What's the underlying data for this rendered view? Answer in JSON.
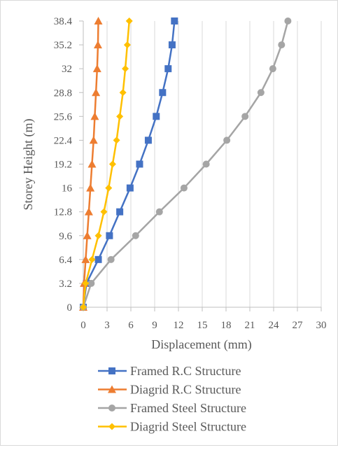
{
  "chart_data": {
    "type": "line",
    "orientation": "horizontal-x-value",
    "xlabel": "Displacement (mm)",
    "ylabel": "Storey Height (m)",
    "xlim": [
      0,
      30
    ],
    "xticks": [
      "0",
      "3",
      "6",
      "9",
      "12",
      "15",
      "18",
      "21",
      "24",
      "27",
      "30"
    ],
    "yticks": [
      "0",
      "3.2",
      "6.4",
      "9.6",
      "12.8",
      "16",
      "19.2",
      "22.4",
      "25.6",
      "28.8",
      "32",
      "35.2",
      "38.4"
    ],
    "y": [
      0,
      3.2,
      6.4,
      9.6,
      12.8,
      16,
      19.2,
      22.4,
      25.6,
      28.8,
      32,
      35.2,
      38.4
    ],
    "grid": "vertical",
    "legend_position": "bottom",
    "series": [
      {
        "name": "Framed R.C Structure",
        "color": "#4472c4",
        "marker": "square",
        "x": [
          0,
          0.4,
          1.9,
          3.3,
          4.6,
          5.9,
          7.1,
          8.2,
          9.2,
          10.0,
          10.7,
          11.2,
          11.5
        ]
      },
      {
        "name": "Diagrid R.C Structure",
        "color": "#ed7d31",
        "marker": "triangle",
        "x": [
          0,
          0.1,
          0.3,
          0.5,
          0.7,
          0.9,
          1.1,
          1.3,
          1.45,
          1.6,
          1.75,
          1.85,
          1.9
        ]
      },
      {
        "name": "Framed Steel Structure",
        "color": "#a5a5a5",
        "marker": "circle",
        "x": [
          0,
          1.0,
          3.5,
          6.6,
          9.6,
          12.7,
          15.5,
          18.1,
          20.4,
          22.4,
          23.9,
          25.0,
          25.8
        ]
      },
      {
        "name": "Diagrid Steel Structure",
        "color": "#ffc000",
        "marker": "diamond",
        "x": [
          0,
          0.3,
          1.1,
          1.9,
          2.6,
          3.2,
          3.7,
          4.2,
          4.6,
          5.0,
          5.3,
          5.55,
          5.8
        ]
      }
    ]
  }
}
